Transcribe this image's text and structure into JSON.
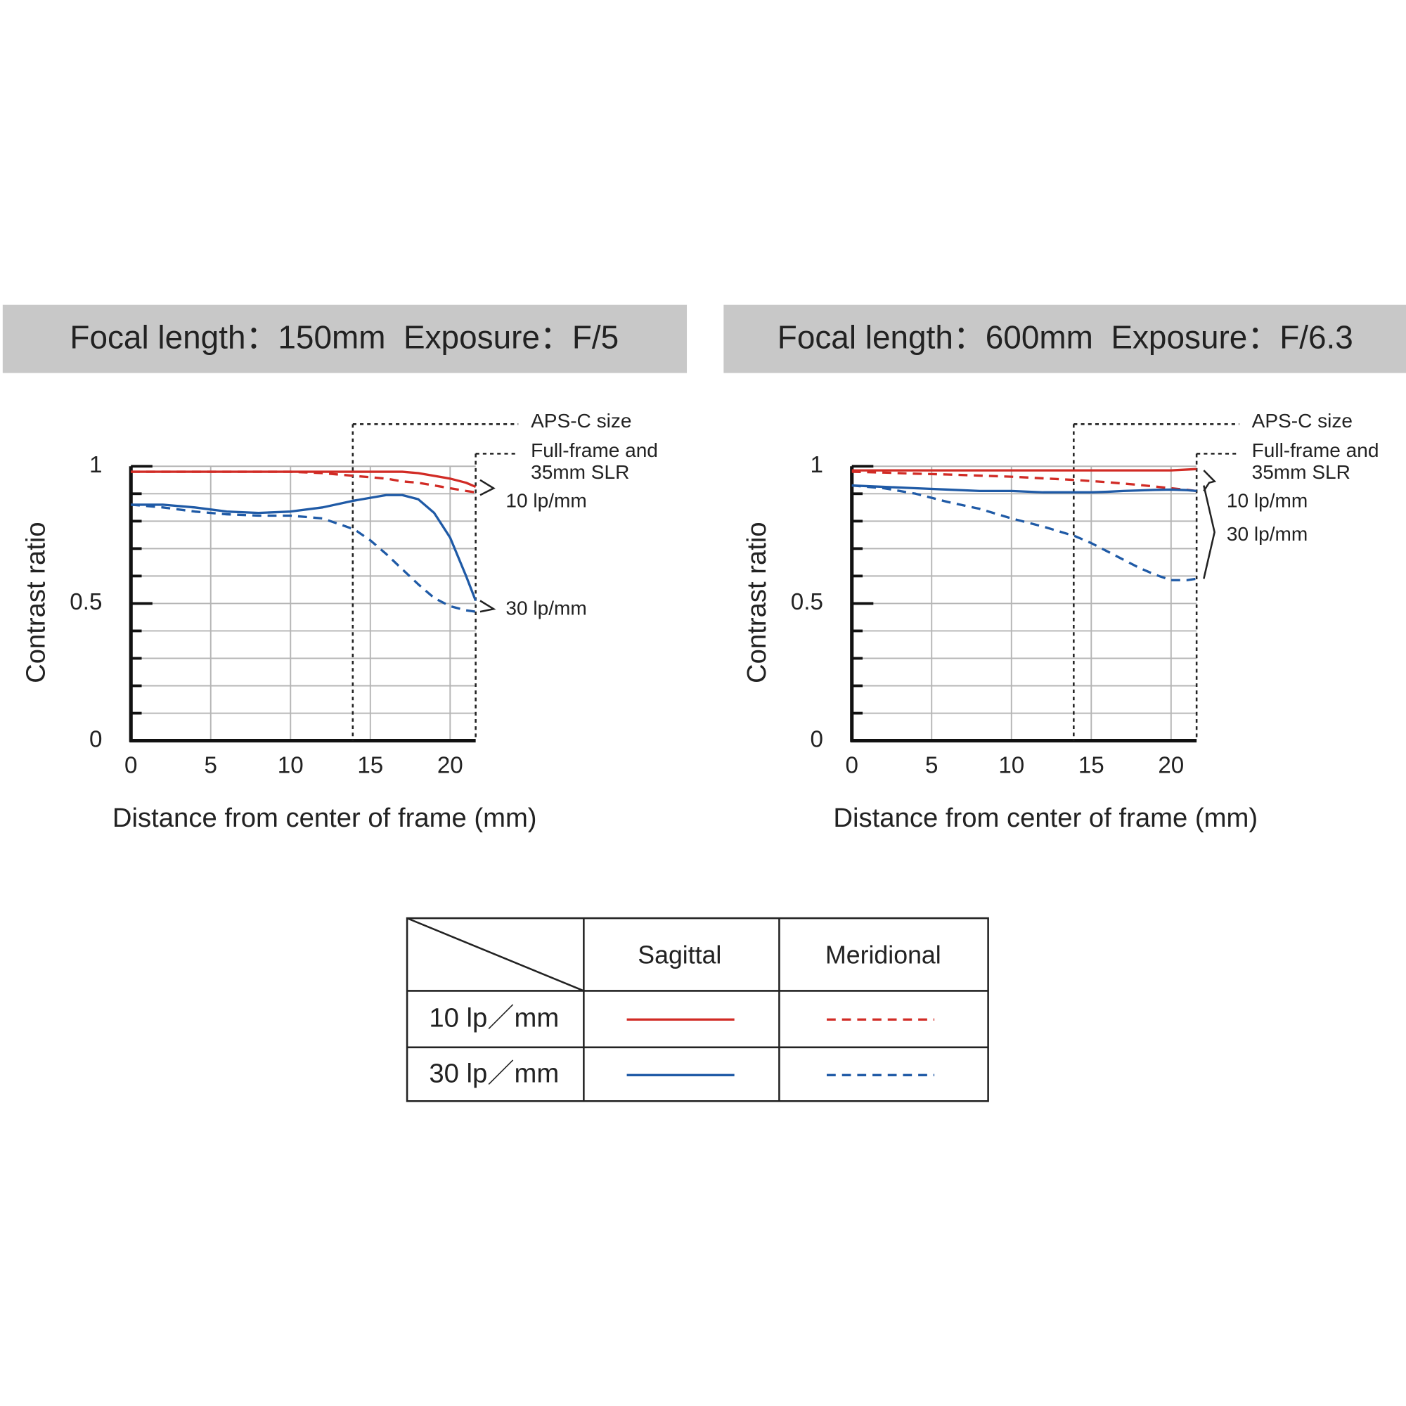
{
  "chart_data": [
    {
      "type": "line",
      "title": "Focal length：150mm  Exposure：F/5",
      "x_label": "Distance from center of frame (mm)",
      "y_label": "Contrast ratio",
      "xlim": [
        0,
        21.6
      ],
      "ylim": [
        0,
        1
      ],
      "xticks": [
        0,
        5,
        10,
        15,
        20
      ],
      "yticks": [
        0,
        0.5,
        1
      ],
      "minor_yticks": [
        0.1,
        0.2,
        0.3,
        0.4,
        0.6,
        0.7,
        0.8,
        0.9
      ],
      "grid": true,
      "markers": [
        {
          "label": [
            "APS-C size"
          ],
          "x": 13.9
        },
        {
          "label": [
            "Full-frame and",
            "35mm SLR"
          ],
          "x": 21.6
        }
      ],
      "curve_labels": [
        "10 lp/mm",
        "30 lp/mm"
      ],
      "x": [
        0,
        2,
        4,
        6,
        8,
        10,
        12,
        14,
        15,
        16,
        17,
        18,
        19,
        20,
        21,
        21.6
      ],
      "series": [
        {
          "color": "#d12b25",
          "dashed": false,
          "values": [
            0.98,
            0.98,
            0.98,
            0.98,
            0.98,
            0.98,
            0.98,
            0.98,
            0.98,
            0.98,
            0.98,
            0.975,
            0.965,
            0.955,
            0.94,
            0.925
          ]
        },
        {
          "color": "#d12b25",
          "dashed": true,
          "values": [
            0.98,
            0.98,
            0.98,
            0.98,
            0.98,
            0.98,
            0.975,
            0.965,
            0.96,
            0.955,
            0.945,
            0.94,
            0.93,
            0.92,
            0.91,
            0.905
          ]
        },
        {
          "color": "#1f5aa6",
          "dashed": false,
          "values": [
            0.86,
            0.86,
            0.85,
            0.835,
            0.83,
            0.835,
            0.85,
            0.875,
            0.885,
            0.895,
            0.895,
            0.88,
            0.83,
            0.74,
            0.6,
            0.51
          ]
        },
        {
          "color": "#1f5aa6",
          "dashed": true,
          "values": [
            0.86,
            0.85,
            0.835,
            0.825,
            0.82,
            0.82,
            0.81,
            0.77,
            0.73,
            0.68,
            0.625,
            0.57,
            0.52,
            0.49,
            0.475,
            0.47
          ]
        }
      ]
    },
    {
      "type": "line",
      "title": "Focal length：600mm  Exposure：F/6.3",
      "x_label": "Distance from center of frame (mm)",
      "y_label": "Contrast ratio",
      "xlim": [
        0,
        21.6
      ],
      "ylim": [
        0,
        1
      ],
      "xticks": [
        0,
        5,
        10,
        15,
        20
      ],
      "yticks": [
        0,
        0.5,
        1
      ],
      "minor_yticks": [
        0.1,
        0.2,
        0.3,
        0.4,
        0.6,
        0.7,
        0.8,
        0.9
      ],
      "grid": true,
      "markers": [
        {
          "label": [
            "APS-C size"
          ],
          "x": 13.9
        },
        {
          "label": [
            "Full-frame and",
            "35mm SLR"
          ],
          "x": 21.6
        }
      ],
      "curve_labels": [
        "10 lp/mm",
        "30 lp/mm"
      ],
      "x": [
        0,
        2,
        4,
        6,
        8,
        10,
        12,
        14,
        15,
        16,
        17,
        18,
        19,
        20,
        21,
        21.6
      ],
      "series": [
        {
          "color": "#d12b25",
          "dashed": false,
          "values": [
            0.985,
            0.985,
            0.985,
            0.985,
            0.985,
            0.985,
            0.985,
            0.985,
            0.985,
            0.985,
            0.985,
            0.985,
            0.985,
            0.985,
            0.988,
            0.99
          ]
        },
        {
          "color": "#d12b25",
          "dashed": true,
          "values": [
            0.98,
            0.977,
            0.973,
            0.97,
            0.966,
            0.962,
            0.956,
            0.95,
            0.946,
            0.942,
            0.937,
            0.932,
            0.926,
            0.92,
            0.914,
            0.91
          ]
        },
        {
          "color": "#1f5aa6",
          "dashed": false,
          "values": [
            0.93,
            0.925,
            0.92,
            0.915,
            0.91,
            0.91,
            0.905,
            0.905,
            0.905,
            0.907,
            0.91,
            0.912,
            0.914,
            0.915,
            0.913,
            0.91
          ]
        },
        {
          "color": "#1f5aa6",
          "dashed": true,
          "values": [
            0.93,
            0.92,
            0.9,
            0.87,
            0.845,
            0.81,
            0.78,
            0.745,
            0.72,
            0.69,
            0.66,
            0.63,
            0.605,
            0.585,
            0.585,
            0.59
          ]
        }
      ]
    }
  ],
  "legend_table": {
    "columns": [
      "Sagittal",
      "Meridional"
    ],
    "rows": [
      "10 lp／mm",
      "30 lp／mm"
    ]
  }
}
